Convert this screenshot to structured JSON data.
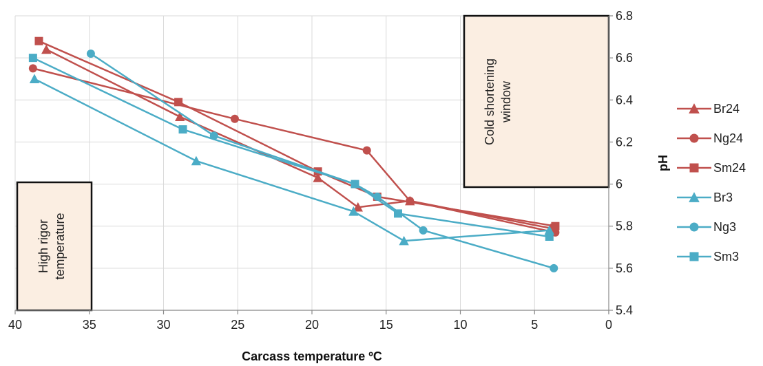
{
  "chart_data": {
    "type": "line",
    "x_reversed": true,
    "xlabel": "Carcass temperature ºC",
    "ylabel": "pH",
    "xlim": [
      0,
      40
    ],
    "ylim": [
      5.4,
      6.8
    ],
    "x_ticks": [
      40,
      35,
      30,
      25,
      20,
      15,
      10,
      5,
      0
    ],
    "y_ticks": [
      5.4,
      5.6,
      5.8,
      6.0,
      6.2,
      6.4,
      6.6,
      6.8
    ],
    "y_tick_labels": [
      "5.4",
      "5.6",
      "5.8",
      "6",
      "6.2",
      "6.4",
      "6.6",
      "6.8"
    ],
    "grid": "vertical and horizontal",
    "legend_position": "right",
    "colors": {
      "red_series": "#c0504d",
      "blue_series": "#4bacc6",
      "grid": "#d9d9d9",
      "annotation_fill": "#fbeee2"
    },
    "series": [
      {
        "name": "Br24",
        "color": "#c0504d",
        "marker": "triangle",
        "points": [
          [
            37.9,
            6.64
          ],
          [
            28.9,
            6.32
          ],
          [
            19.6,
            6.03
          ],
          [
            16.9,
            5.89
          ],
          [
            13.4,
            5.92
          ],
          [
            3.9,
            5.79
          ]
        ]
      },
      {
        "name": "Ng24",
        "color": "#c0504d",
        "marker": "circle",
        "points": [
          [
            38.8,
            6.55
          ],
          [
            25.2,
            6.31
          ],
          [
            16.3,
            6.16
          ],
          [
            13.4,
            5.92
          ],
          [
            3.6,
            5.77
          ]
        ]
      },
      {
        "name": "Sm24",
        "color": "#c0504d",
        "marker": "square",
        "points": [
          [
            38.4,
            6.68
          ],
          [
            29.0,
            6.39
          ],
          [
            19.6,
            6.06
          ],
          [
            15.6,
            5.94
          ],
          [
            3.6,
            5.8
          ]
        ]
      },
      {
        "name": "Br3",
        "color": "#4bacc6",
        "marker": "triangle",
        "points": [
          [
            38.7,
            6.5
          ],
          [
            27.8,
            6.11
          ],
          [
            17.2,
            5.87
          ],
          [
            13.8,
            5.73
          ],
          [
            4.0,
            5.78
          ]
        ]
      },
      {
        "name": "Ng3",
        "color": "#4bacc6",
        "marker": "circle",
        "points": [
          [
            34.9,
            6.62
          ],
          [
            26.6,
            6.23
          ],
          [
            17.1,
            6.0
          ],
          [
            15.6,
            5.94
          ],
          [
            12.5,
            5.78
          ],
          [
            3.7,
            5.6
          ]
        ]
      },
      {
        "name": "Sm3",
        "color": "#4bacc6",
        "marker": "square",
        "points": [
          [
            38.8,
            6.6
          ],
          [
            28.7,
            6.26
          ],
          [
            17.1,
            6.0
          ],
          [
            14.2,
            5.86
          ],
          [
            4.0,
            5.75
          ]
        ]
      }
    ]
  },
  "annotations": {
    "cold_shortening": {
      "line1": "Cold shortening",
      "line2": "window"
    },
    "high_rigor": {
      "line1": "High rigor",
      "line2": "temperature"
    }
  }
}
